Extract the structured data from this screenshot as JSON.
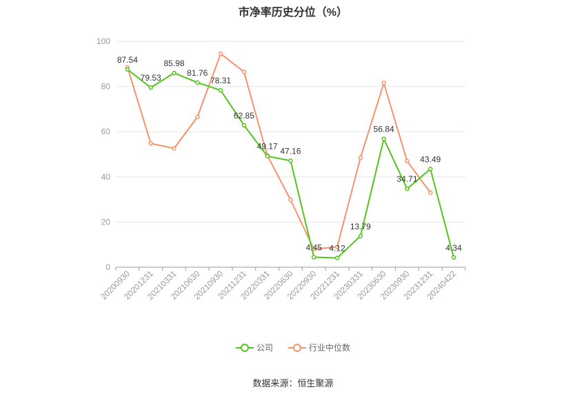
{
  "chart_data": {
    "type": "line",
    "title": "市净率历史分位（%）",
    "categories": [
      "20200930",
      "20201231",
      "20210331",
      "20210630",
      "20210930",
      "20211231",
      "20220331",
      "20220630",
      "20220930",
      "20221231",
      "20230331",
      "20230630",
      "20230930",
      "20231231",
      "20240422"
    ],
    "ylim": [
      0,
      100
    ],
    "yticks": [
      0,
      20,
      40,
      60,
      80,
      100
    ],
    "grid": true,
    "legend_position": "bottom",
    "series": [
      {
        "name": "公司",
        "color": "#52c41a",
        "values": [
          87.54,
          79.53,
          85.98,
          81.76,
          78.31,
          62.85,
          49.17,
          47.16,
          4.45,
          4.12,
          13.79,
          56.84,
          34.71,
          43.49,
          4.34
        ],
        "show_labels": true
      },
      {
        "name": "行业中位数",
        "color": "#f4936b",
        "values": [
          88.5,
          54.8,
          52.6,
          66.5,
          94.5,
          86.5,
          49.5,
          29.8,
          8.0,
          9.0,
          48.5,
          81.5,
          47.0,
          33.0,
          null
        ],
        "show_labels": false
      }
    ]
  },
  "source": "数据来源：恒生聚源"
}
